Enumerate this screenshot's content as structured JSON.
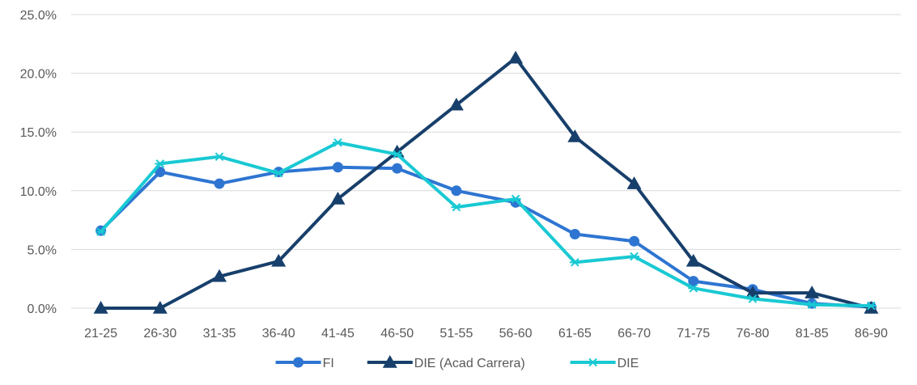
{
  "colors": {
    "FI": "#2e75d2",
    "DIE (Acad Carrera)": "#173f6b",
    "DIE": "#19c9d3",
    "grid": "#d9d9d9",
    "text": "#595959"
  },
  "chart_data": {
    "type": "line",
    "title": "",
    "xlabel": "",
    "ylabel": "",
    "categories": [
      "21-25",
      "26-30",
      "31-35",
      "36-40",
      "41-45",
      "46-50",
      "51-55",
      "56-60",
      "61-65",
      "66-70",
      "71-75",
      "76-80",
      "81-85",
      "86-90"
    ],
    "y_ticks": [
      "0.0%",
      "5.0%",
      "10.0%",
      "15.0%",
      "20.0%",
      "25.0%"
    ],
    "ylim": [
      0,
      25
    ],
    "grid": true,
    "legend_position": "bottom",
    "series": [
      {
        "name": "FI",
        "marker": "circle",
        "values": [
          6.6,
          11.6,
          10.6,
          11.6,
          12.0,
          11.9,
          10.0,
          9.0,
          6.3,
          5.7,
          2.3,
          1.6,
          0.4,
          0.1
        ]
      },
      {
        "name": "DIE (Acad Carrera)",
        "marker": "triangle",
        "values": [
          0.0,
          0.0,
          2.7,
          4.0,
          9.3,
          13.3,
          17.3,
          21.3,
          14.6,
          10.6,
          4.0,
          1.3,
          1.3,
          0.0
        ]
      },
      {
        "name": "DIE",
        "marker": "star",
        "values": [
          6.5,
          12.3,
          12.9,
          11.5,
          14.1,
          13.1,
          8.6,
          9.3,
          3.9,
          4.4,
          1.7,
          0.8,
          0.3,
          0.2
        ]
      }
    ]
  }
}
